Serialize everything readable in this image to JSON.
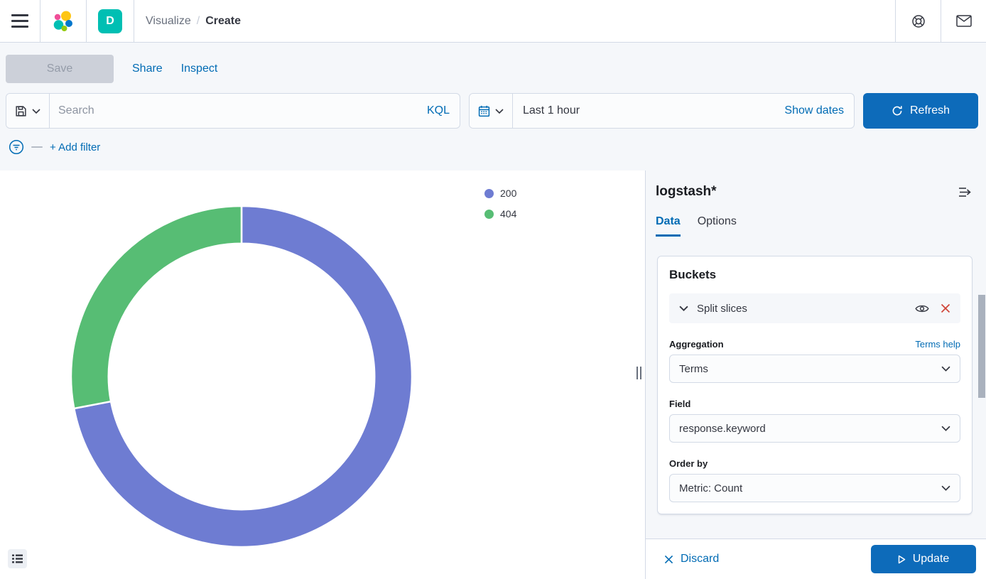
{
  "header": {
    "breadcrumb": {
      "section": "Visualize",
      "separator": "/",
      "current": "Create"
    },
    "space_badge": "D"
  },
  "toolbar": {
    "save": "Save",
    "share": "Share",
    "inspect": "Inspect"
  },
  "query_bar": {
    "search_placeholder": "Search",
    "kql_label": "KQL",
    "time_range": "Last 1 hour",
    "show_dates_label": "Show dates",
    "refresh_label": "Refresh"
  },
  "filter_bar": {
    "add_filter_label": "+ Add filter"
  },
  "chart_data": {
    "type": "pie",
    "donut": true,
    "categories": [
      "200",
      "404"
    ],
    "values_pct": [
      72,
      28
    ],
    "colors": [
      "#6E7CD2",
      "#57BD74"
    ],
    "legend_position": "top-right",
    "inner_radius_ratio": 0.78,
    "slice_border_color": "#ffffff"
  },
  "sidebar": {
    "index_pattern": "logstash*",
    "tabs": [
      {
        "label": "Data",
        "active": true
      },
      {
        "label": "Options",
        "active": false
      }
    ],
    "buckets": {
      "title": "Buckets",
      "split_slices_label": "Split slices",
      "aggregation": {
        "label": "Aggregation",
        "help_link": "Terms help",
        "value": "Terms"
      },
      "field": {
        "label": "Field",
        "value": "response.keyword"
      },
      "order_by": {
        "label": "Order by",
        "value": "Metric: Count"
      }
    },
    "footer": {
      "discard_label": "Discard",
      "update_label": "Update"
    }
  }
}
